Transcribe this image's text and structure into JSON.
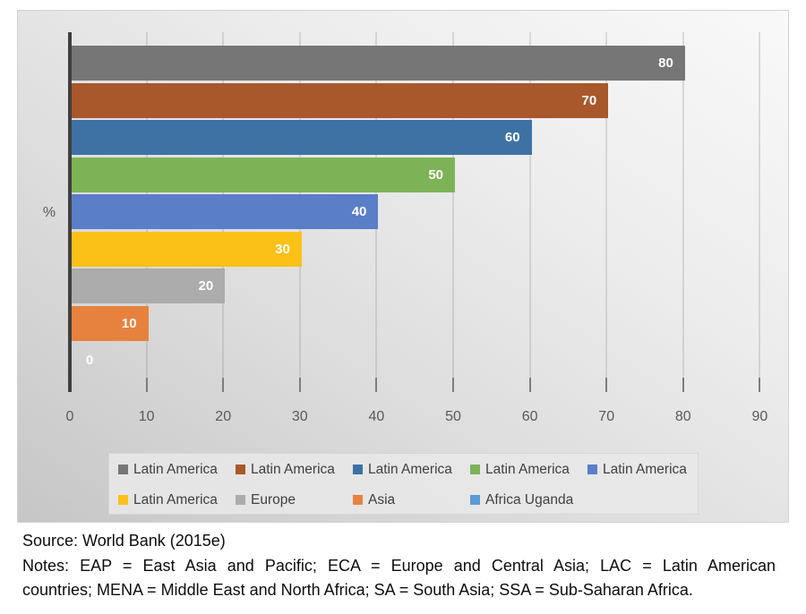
{
  "chart_data": {
    "type": "bar",
    "orientation": "horizontal",
    "title": "",
    "xlabel": "",
    "ylabel": "%",
    "xlim": [
      0,
      90
    ],
    "xticks": [
      0,
      10,
      20,
      30,
      40,
      50,
      60,
      70,
      80,
      90
    ],
    "grid": true,
    "legend_position": "bottom",
    "series": [
      {
        "name": "Latin America",
        "value": 80,
        "color": "#767676",
        "label": "80"
      },
      {
        "name": "Latin America",
        "value": 70,
        "color": "#a8582b",
        "label": "70"
      },
      {
        "name": "Latin America",
        "value": 60,
        "color": "#3e72a4",
        "label": "60"
      },
      {
        "name": "Latin America",
        "value": 50,
        "color": "#7db356",
        "label": "50"
      },
      {
        "name": "Latin America",
        "value": 40,
        "color": "#5b7ec9",
        "label": "40"
      },
      {
        "name": "Latin America",
        "value": 30,
        "color": "#fcc117",
        "label": "30"
      },
      {
        "name": "Europe",
        "value": 20,
        "color": "#acacac",
        "label": "20"
      },
      {
        "name": "Asia",
        "value": 10,
        "color": "#e7823e",
        "label": "10"
      },
      {
        "name": "Africa Uganda",
        "value": 0,
        "color": "#5b9bd5",
        "label": "0"
      }
    ]
  },
  "colors": {
    "axis_line": "#3f3f3f",
    "tick_label": "#595959",
    "legend_text": "#404040",
    "bar_label": "#ffffff"
  },
  "caption": {
    "source": "Source: World Bank (2015e)",
    "notes_lines": [
      "Notes: EAP = East Asia and Pacific; ECA = Europe and Central Asia; LAC = Latin American",
      "countries; MENA = Middle East and North Africa; SA = South Asia; SSA = Sub-Saharan Africa."
    ]
  }
}
